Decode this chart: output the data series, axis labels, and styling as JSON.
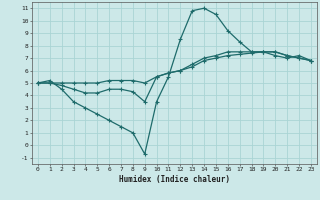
{
  "xlabel": "Humidex (Indice chaleur)",
  "xlim": [
    -0.5,
    23.5
  ],
  "ylim": [
    -1.5,
    11.5
  ],
  "xticks": [
    0,
    1,
    2,
    3,
    4,
    5,
    6,
    7,
    8,
    9,
    10,
    11,
    12,
    13,
    14,
    15,
    16,
    17,
    18,
    19,
    20,
    21,
    22,
    23
  ],
  "yticks": [
    -1,
    0,
    1,
    2,
    3,
    4,
    5,
    6,
    7,
    8,
    9,
    10,
    11
  ],
  "bg_color": "#cce8e8",
  "grid_color": "#aad4d4",
  "line_color": "#1e6b6b",
  "marker": "+",
  "markersize": 3.5,
  "linewidth": 0.9,
  "series": [
    {
      "x": [
        0,
        1,
        2,
        3,
        4,
        5,
        6,
        7,
        8,
        9,
        10,
        11,
        12,
        13,
        14,
        15,
        16,
        17,
        18,
        19,
        20,
        21,
        22,
        23
      ],
      "y": [
        5.0,
        5.2,
        4.5,
        3.5,
        3.0,
        2.5,
        2.0,
        1.5,
        1.0,
        -0.7,
        3.5,
        5.5,
        8.5,
        10.8,
        11.0,
        10.5,
        9.2,
        8.3,
        7.5,
        7.5,
        7.2,
        7.0,
        7.2,
        6.8
      ]
    },
    {
      "x": [
        0,
        1,
        2,
        3,
        4,
        5,
        6,
        7,
        8,
        9,
        10,
        11,
        12,
        13,
        14,
        15,
        16,
        17,
        18,
        19,
        20,
        21,
        22,
        23
      ],
      "y": [
        5.0,
        5.0,
        4.8,
        4.5,
        4.2,
        4.2,
        4.5,
        4.5,
        4.3,
        3.5,
        5.5,
        5.8,
        6.0,
        6.3,
        6.8,
        7.0,
        7.2,
        7.3,
        7.4,
        7.5,
        7.5,
        7.2,
        7.0,
        6.8
      ]
    },
    {
      "x": [
        0,
        1,
        2,
        3,
        4,
        5,
        6,
        7,
        8,
        9,
        10,
        11,
        12,
        13,
        14,
        15,
        16,
        17,
        18,
        19,
        20,
        21,
        22,
        23
      ],
      "y": [
        5.0,
        5.0,
        5.0,
        5.0,
        5.0,
        5.0,
        5.2,
        5.2,
        5.2,
        5.0,
        5.5,
        5.8,
        6.0,
        6.5,
        7.0,
        7.2,
        7.5,
        7.5,
        7.5,
        7.5,
        7.5,
        7.2,
        7.0,
        6.8
      ]
    }
  ]
}
